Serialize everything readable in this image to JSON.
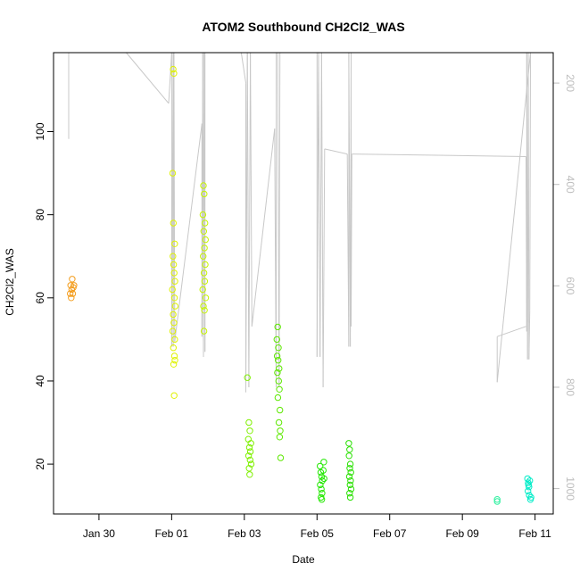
{
  "chart_data": {
    "type": "scatter",
    "title": "ATOM2 Southbound CH2Cl2_WAS",
    "xlabel": "Date",
    "ylabel": "CH2Cl2_WAS",
    "xlim": [
      "2017-01-28T18:00",
      "2017-02-11T12:00"
    ],
    "ylim": [
      8,
      119
    ],
    "x_ticks": [
      {
        "date": "2017-01-30",
        "label": "Jan 30"
      },
      {
        "date": "2017-02-01",
        "label": "Feb 01"
      },
      {
        "date": "2017-02-03",
        "label": "Feb 03"
      },
      {
        "date": "2017-02-05",
        "label": "Feb 05"
      },
      {
        "date": "2017-02-07",
        "label": "Feb 07"
      },
      {
        "date": "2017-02-09",
        "label": "Feb 09"
      },
      {
        "date": "2017-02-11",
        "label": "Feb 11"
      }
    ],
    "y_ticks": [
      20,
      40,
      60,
      80,
      100
    ],
    "y2_ticks": [
      200,
      400,
      600,
      800,
      1000
    ],
    "y2lim": [
      1050,
      140
    ],
    "grid": false,
    "points": [
      {
        "x": "2017-01-29T05:00",
        "y": 61,
        "color": "#f39c1b"
      },
      {
        "x": "2017-01-29T05:20",
        "y": 63,
        "color": "#f39c1b"
      },
      {
        "x": "2017-01-29T05:40",
        "y": 60,
        "color": "#f39c1b"
      },
      {
        "x": "2017-01-29T06:00",
        "y": 62,
        "color": "#f39c1b"
      },
      {
        "x": "2017-01-29T06:20",
        "y": 64.5,
        "color": "#f39c1b"
      },
      {
        "x": "2017-01-29T06:40",
        "y": 61,
        "color": "#f39c1b"
      },
      {
        "x": "2017-01-29T07:00",
        "y": 62.5,
        "color": "#f39c1b"
      },
      {
        "x": "2017-01-29T07:30",
        "y": 63,
        "color": "#f39c1b"
      },
      {
        "x": "2017-02-01T01:00",
        "y": 115,
        "color": "#dff200"
      },
      {
        "x": "2017-02-01T01:30",
        "y": 114,
        "color": "#dff200"
      },
      {
        "x": "2017-02-01T00:40",
        "y": 90,
        "color": "#dff200"
      },
      {
        "x": "2017-02-01T01:10",
        "y": 78,
        "color": "#dff200"
      },
      {
        "x": "2017-02-01T02:00",
        "y": 73,
        "color": "#dff200"
      },
      {
        "x": "2017-02-01T00:50",
        "y": 70,
        "color": "#dff200"
      },
      {
        "x": "2017-02-01T01:20",
        "y": 68,
        "color": "#dff200"
      },
      {
        "x": "2017-02-01T01:40",
        "y": 66,
        "color": "#dff200"
      },
      {
        "x": "2017-02-01T02:10",
        "y": 64,
        "color": "#dff200"
      },
      {
        "x": "2017-02-01T00:30",
        "y": 62,
        "color": "#dff200"
      },
      {
        "x": "2017-02-01T01:50",
        "y": 60,
        "color": "#dff200"
      },
      {
        "x": "2017-02-01T02:20",
        "y": 58,
        "color": "#dff200"
      },
      {
        "x": "2017-02-01T01:00",
        "y": 56,
        "color": "#dff200"
      },
      {
        "x": "2017-02-01T01:30",
        "y": 54,
        "color": "#dff200"
      },
      {
        "x": "2017-02-01T00:40",
        "y": 52,
        "color": "#dff200"
      },
      {
        "x": "2017-02-01T02:00",
        "y": 50,
        "color": "#dff200"
      },
      {
        "x": "2017-02-01T01:10",
        "y": 48,
        "color": "#dff200"
      },
      {
        "x": "2017-02-01T01:50",
        "y": 46,
        "color": "#dff200"
      },
      {
        "x": "2017-02-01T02:10",
        "y": 45,
        "color": "#dff200"
      },
      {
        "x": "2017-02-01T01:20",
        "y": 44,
        "color": "#dff200"
      },
      {
        "x": "2017-02-01T01:40",
        "y": 36.5,
        "color": "#dff200"
      },
      {
        "x": "2017-02-01T21:00",
        "y": 87,
        "color": "#c6f500"
      },
      {
        "x": "2017-02-01T21:30",
        "y": 85,
        "color": "#c6f500"
      },
      {
        "x": "2017-02-01T20:40",
        "y": 80,
        "color": "#c6f500"
      },
      {
        "x": "2017-02-01T22:00",
        "y": 78,
        "color": "#c6f500"
      },
      {
        "x": "2017-02-01T21:10",
        "y": 76,
        "color": "#c6f500"
      },
      {
        "x": "2017-02-01T22:20",
        "y": 74,
        "color": "#c6f500"
      },
      {
        "x": "2017-02-01T21:40",
        "y": 72,
        "color": "#c6f500"
      },
      {
        "x": "2017-02-01T20:50",
        "y": 70,
        "color": "#c6f500"
      },
      {
        "x": "2017-02-01T22:10",
        "y": 68,
        "color": "#c6f500"
      },
      {
        "x": "2017-02-01T21:20",
        "y": 66,
        "color": "#c6f500"
      },
      {
        "x": "2017-02-01T21:50",
        "y": 64,
        "color": "#c6f500"
      },
      {
        "x": "2017-02-01T20:30",
        "y": 62,
        "color": "#c6f500"
      },
      {
        "x": "2017-02-01T22:30",
        "y": 60,
        "color": "#c6f500"
      },
      {
        "x": "2017-02-01T21:00",
        "y": 58,
        "color": "#c6f500"
      },
      {
        "x": "2017-02-01T21:40",
        "y": 57,
        "color": "#c6f500"
      },
      {
        "x": "2017-02-01T21:20",
        "y": 52,
        "color": "#c6f500"
      },
      {
        "x": "2017-02-03T02:00",
        "y": 40.8,
        "color": "#7ff000"
      },
      {
        "x": "2017-02-03T03:00",
        "y": 30,
        "color": "#7ff000"
      },
      {
        "x": "2017-02-03T03:40",
        "y": 28,
        "color": "#7ff000"
      },
      {
        "x": "2017-02-03T02:40",
        "y": 26,
        "color": "#7ff000"
      },
      {
        "x": "2017-02-03T04:20",
        "y": 25,
        "color": "#7ff000"
      },
      {
        "x": "2017-02-03T03:20",
        "y": 24,
        "color": "#7ff000"
      },
      {
        "x": "2017-02-03T04:00",
        "y": 23,
        "color": "#7ff000"
      },
      {
        "x": "2017-02-03T02:50",
        "y": 22,
        "color": "#7ff000"
      },
      {
        "x": "2017-02-03T03:50",
        "y": 21,
        "color": "#7ff000"
      },
      {
        "x": "2017-02-03T04:30",
        "y": 20,
        "color": "#7ff000"
      },
      {
        "x": "2017-02-03T03:10",
        "y": 19,
        "color": "#7ff000"
      },
      {
        "x": "2017-02-03T03:30",
        "y": 17.5,
        "color": "#7ff000"
      },
      {
        "x": "2017-02-03T22:00",
        "y": 53,
        "color": "#5de800"
      },
      {
        "x": "2017-02-03T21:30",
        "y": 50,
        "color": "#5de800"
      },
      {
        "x": "2017-02-03T22:30",
        "y": 48,
        "color": "#5de800"
      },
      {
        "x": "2017-02-03T21:40",
        "y": 46,
        "color": "#5de800"
      },
      {
        "x": "2017-02-03T22:20",
        "y": 45,
        "color": "#5de800"
      },
      {
        "x": "2017-02-03T23:00",
        "y": 43,
        "color": "#5de800"
      },
      {
        "x": "2017-02-03T21:50",
        "y": 42,
        "color": "#5de800"
      },
      {
        "x": "2017-02-03T22:40",
        "y": 40,
        "color": "#5de800"
      },
      {
        "x": "2017-02-03T23:10",
        "y": 38,
        "color": "#5de800"
      },
      {
        "x": "2017-02-03T22:10",
        "y": 36,
        "color": "#5de800"
      },
      {
        "x": "2017-02-03T23:30",
        "y": 33,
        "color": "#5de800"
      },
      {
        "x": "2017-02-03T22:50",
        "y": 30,
        "color": "#5de800"
      },
      {
        "x": "2017-02-03T23:40",
        "y": 28,
        "color": "#5de800"
      },
      {
        "x": "2017-02-03T23:20",
        "y": 26.5,
        "color": "#5de800"
      },
      {
        "x": "2017-02-04T00:00",
        "y": 21.5,
        "color": "#5de800"
      },
      {
        "x": "2017-02-05T02:00",
        "y": 19.5,
        "color": "#22e800"
      },
      {
        "x": "2017-02-05T02:30",
        "y": 18,
        "color": "#22e800"
      },
      {
        "x": "2017-02-05T03:00",
        "y": 17,
        "color": "#22e800"
      },
      {
        "x": "2017-02-05T03:30",
        "y": 16,
        "color": "#22e800"
      },
      {
        "x": "2017-02-05T02:10",
        "y": 15,
        "color": "#22e800"
      },
      {
        "x": "2017-02-05T02:50",
        "y": 14,
        "color": "#22e800"
      },
      {
        "x": "2017-02-05T03:20",
        "y": 13,
        "color": "#22e800"
      },
      {
        "x": "2017-02-05T02:40",
        "y": 12,
        "color": "#22e800"
      },
      {
        "x": "2017-02-05T03:10",
        "y": 11.5,
        "color": "#22e800"
      },
      {
        "x": "2017-02-05T04:30",
        "y": 20.5,
        "color": "#22e800"
      },
      {
        "x": "2017-02-05T04:10",
        "y": 18.5,
        "color": "#22e800"
      },
      {
        "x": "2017-02-05T04:40",
        "y": 16.5,
        "color": "#22e800"
      },
      {
        "x": "2017-02-05T21:00",
        "y": 25,
        "color": "#28e000"
      },
      {
        "x": "2017-02-05T21:30",
        "y": 23.5,
        "color": "#28e000"
      },
      {
        "x": "2017-02-05T21:10",
        "y": 22,
        "color": "#28e000"
      },
      {
        "x": "2017-02-05T22:00",
        "y": 20,
        "color": "#28e000"
      },
      {
        "x": "2017-02-05T21:40",
        "y": 19,
        "color": "#28e000"
      },
      {
        "x": "2017-02-05T22:20",
        "y": 18,
        "color": "#28e000"
      },
      {
        "x": "2017-02-05T21:20",
        "y": 17,
        "color": "#28e000"
      },
      {
        "x": "2017-02-05T22:10",
        "y": 16,
        "color": "#28e000"
      },
      {
        "x": "2017-02-05T21:50",
        "y": 15,
        "color": "#28e000"
      },
      {
        "x": "2017-02-05T22:30",
        "y": 14,
        "color": "#28e000"
      },
      {
        "x": "2017-02-05T21:30",
        "y": 13,
        "color": "#28e000"
      },
      {
        "x": "2017-02-05T22:00",
        "y": 12,
        "color": "#28e000"
      },
      {
        "x": "2017-02-09T23:00",
        "y": 11.5,
        "color": "#2ff0a0"
      },
      {
        "x": "2017-02-09T23:00",
        "y": 11,
        "color": "#2ff0a0"
      },
      {
        "x": "2017-02-10T19:00",
        "y": 16.5,
        "color": "#00ecc8"
      },
      {
        "x": "2017-02-10T19:30",
        "y": 15.5,
        "color": "#00ecc8"
      },
      {
        "x": "2017-02-10T20:00",
        "y": 14.5,
        "color": "#00ecc8"
      },
      {
        "x": "2017-02-10T20:30",
        "y": 16,
        "color": "#00ecc8"
      },
      {
        "x": "2017-02-10T19:20",
        "y": 13.5,
        "color": "#00ecc8"
      },
      {
        "x": "2017-02-10T20:10",
        "y": 12.5,
        "color": "#00ecc8"
      },
      {
        "x": "2017-02-10T21:00",
        "y": 11.5,
        "color": "#00ecc8"
      },
      {
        "x": "2017-02-10T21:20",
        "y": 12,
        "color": "#00ecc8"
      },
      {
        "x": "2017-02-10T19:40",
        "y": 15,
        "color": "#00ecc8"
      }
    ],
    "pressure_line": {
      "color": "#c8c8c8",
      "axis": "y2",
      "points": [
        [
          "2017-01-29T04:00",
          140
        ],
        [
          "2017-01-29T04:00",
          310
        ],
        [
          "2017-01-29T04:00",
          140
        ],
        [
          "2017-01-29T12:00",
          140
        ],
        [
          "2017-01-30T18:00",
          140
        ],
        [
          "2017-01-31T22:00",
          240
        ],
        [
          "2017-02-01T00:00",
          140
        ],
        [
          "2017-02-01T00:00",
          720
        ],
        [
          "2017-02-01T01:00",
          140
        ],
        [
          "2017-02-01T01:00",
          720
        ],
        [
          "2017-02-01T01:30",
          140
        ],
        [
          "2017-02-01T02:00",
          710
        ],
        [
          "2017-02-01T20:00",
          280
        ],
        [
          "2017-02-01T20:00",
          700
        ],
        [
          "2017-02-01T20:30",
          140
        ],
        [
          "2017-02-01T21:00",
          740
        ],
        [
          "2017-02-01T21:30",
          140
        ],
        [
          "2017-02-01T22:00",
          730
        ],
        [
          "2017-02-01T22:00",
          140
        ],
        [
          "2017-02-02T22:00",
          140
        ],
        [
          "2017-02-03T01:00",
          200
        ],
        [
          "2017-02-03T01:00",
          810
        ],
        [
          "2017-02-03T02:00",
          140
        ],
        [
          "2017-02-03T03:00",
          800
        ],
        [
          "2017-02-03T04:00",
          140
        ],
        [
          "2017-02-03T05:00",
          680
        ],
        [
          "2017-02-03T20:00",
          290
        ],
        [
          "2017-02-03T21:00",
          800
        ],
        [
          "2017-02-03T21:00",
          140
        ],
        [
          "2017-02-03T22:00",
          140
        ],
        [
          "2017-02-03T23:00",
          800
        ],
        [
          "2017-02-03T23:30",
          140
        ],
        [
          "2017-02-05T00:00",
          140
        ],
        [
          "2017-02-05T00:00",
          740
        ],
        [
          "2017-02-05T01:00",
          140
        ],
        [
          "2017-02-05T02:00",
          740
        ],
        [
          "2017-02-05T03:00",
          140
        ],
        [
          "2017-02-05T04:00",
          800
        ],
        [
          "2017-02-05T05:00",
          330
        ],
        [
          "2017-02-05T20:00",
          340
        ],
        [
          "2017-02-05T21:00",
          720
        ],
        [
          "2017-02-05T21:00",
          140
        ],
        [
          "2017-02-05T22:00",
          720
        ],
        [
          "2017-02-05T22:30",
          140
        ],
        [
          "2017-02-05T22:30",
          680
        ],
        [
          "2017-02-05T23:00",
          340
        ],
        [
          "2017-02-10T18:00",
          345
        ],
        [
          "2017-02-10T18:30",
          690
        ],
        [
          "2017-02-10T18:30",
          140
        ],
        [
          "2017-02-10T19:00",
          745
        ],
        [
          "2017-02-10T19:30",
          140
        ],
        [
          "2017-02-10T20:00",
          745
        ],
        [
          "2017-02-10T20:30",
          650
        ],
        [
          "2017-02-10T21:00",
          140
        ],
        [
          "2017-02-09T23:00",
          790
        ],
        [
          "2017-02-09T23:00",
          700
        ],
        [
          "2017-02-10T18:00",
          680
        ]
      ]
    }
  }
}
